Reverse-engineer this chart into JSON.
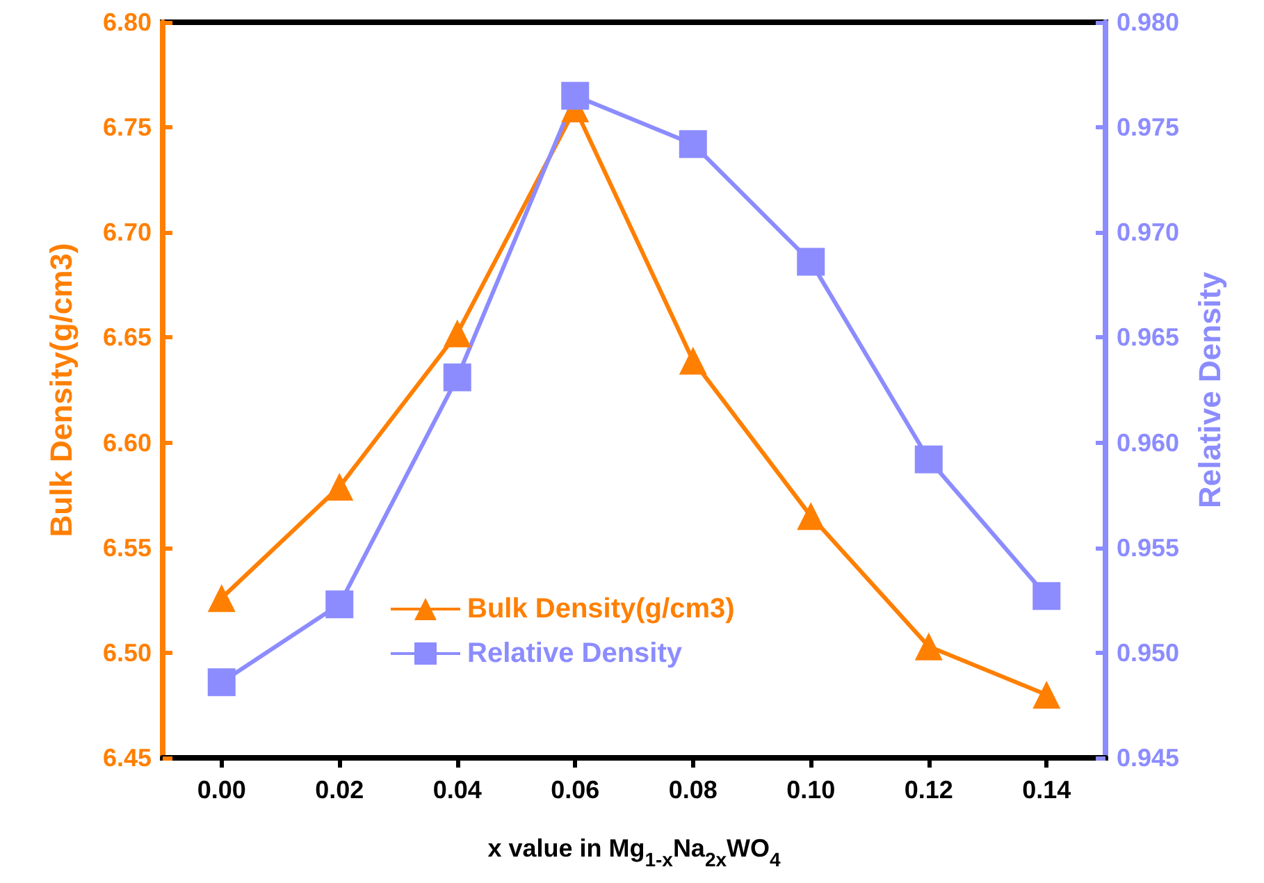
{
  "chart_data": {
    "type": "line",
    "xlabel": "x value in Mg$_{1-x}$Na$_{2x}$WO$_{4}$",
    "ylabel": "Bulk Density(g/cm3)",
    "y2label": "Relative Density",
    "x": [
      0,
      0.02,
      0.04,
      0.06,
      0.08,
      0.1,
      0.12,
      0.14
    ],
    "series": [
      {
        "name": "Bulk Density(g/cm3)",
        "color": "#ff7f00",
        "marker": "triangle",
        "values": [
          6.526,
          6.579,
          6.652,
          6.759,
          6.639,
          6.565,
          6.503,
          6.48
        ]
      },
      {
        "name": "Relative Density",
        "color": "#8c8cff",
        "marker": "square",
        "axis": "y2",
        "values": [
          0.9486,
          0.9523,
          0.9631,
          0.9765,
          0.9742,
          0.9686,
          0.9592,
          0.9527
        ]
      }
    ],
    "xlim": [
      -0.01,
      0.15
    ],
    "xticks": [
      {
        "value": 0,
        "label": "0.00"
      },
      {
        "value": 0.02,
        "label": "0.02"
      },
      {
        "value": 0.04,
        "label": "0.04"
      },
      {
        "value": 0.06,
        "label": "0.06"
      },
      {
        "value": 0.08,
        "label": "0.08"
      },
      {
        "value": 0.1,
        "label": "0.10"
      },
      {
        "value": 0.12,
        "label": "0.12"
      },
      {
        "value": 0.14,
        "label": "0.14"
      }
    ],
    "ylim": [
      6.45,
      6.8
    ],
    "yticks": [
      6.45,
      {
        "value": 6.5,
        "label": "6.50"
      },
      6.55,
      {
        "value": 6.6,
        "label": "6.60"
      },
      6.65,
      {
        "value": 6.7,
        "label": "6.70"
      },
      6.75,
      {
        "value": 6.8,
        "label": "6.80"
      }
    ],
    "y2lim": [
      0.945,
      0.98
    ],
    "y2ticks": [
      0.945,
      {
        "value": 0.95,
        "label": "0.950"
      },
      0.955,
      {
        "value": 0.96,
        "label": "0.960"
      },
      0.965,
      {
        "value": 0.97,
        "label": "0.970"
      },
      0.975,
      {
        "value": 0.98,
        "label": "0.980"
      }
    ],
    "legend": "bottom",
    "grid": false,
    "line_style": "solid"
  }
}
